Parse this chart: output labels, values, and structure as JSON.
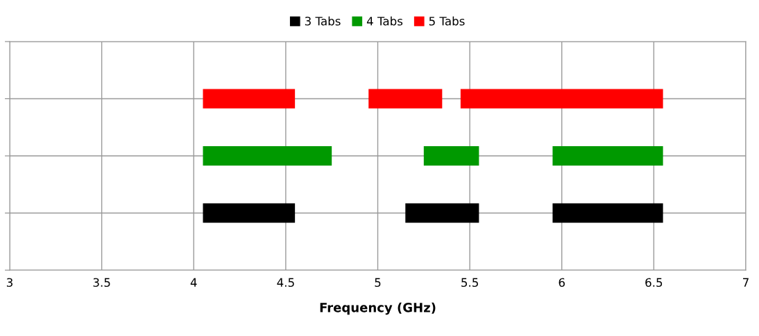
{
  "chart_data": {
    "type": "bar",
    "orientation": "horizontal",
    "xlabel": "Frequency (GHz)",
    "categories": [
      null,
      null,
      null
    ],
    "xlim": [
      3,
      7
    ],
    "xticks": [
      3,
      3.5,
      4,
      4.5,
      5,
      5.5,
      6,
      6.5,
      7
    ],
    "grid": true,
    "legend": "top",
    "tick_labels": "x",
    "series": [
      {
        "name": "3 Tabs",
        "color": "#000000",
        "values": [
          null,
          null,
          0.5
        ],
        "base": [
          null,
          null,
          4.05
        ]
      },
      {
        "name": "4 Tabs",
        "color": "#009900",
        "values": [
          null,
          0.7,
          null
        ],
        "base": [
          null,
          4.05,
          null
        ]
      },
      {
        "name": "5 Tabs",
        "color": "#ff0000",
        "values": [
          0.5,
          null,
          null
        ],
        "base": [
          4.05,
          null,
          null
        ]
      },
      {
        "color": "#000000",
        "values": [
          null,
          null,
          0.4
        ],
        "base": [
          null,
          null,
          5.15
        ]
      },
      {
        "color": "#000000",
        "values": [
          null,
          null,
          0.6
        ],
        "base": [
          null,
          null,
          5.95
        ]
      },
      {
        "color": "#009900",
        "values": [
          null,
          0.3,
          null
        ],
        "base": [
          null,
          5.25,
          null
        ]
      },
      {
        "color": "#009900",
        "values": [
          null,
          0.6,
          null
        ],
        "base": [
          null,
          5.95,
          null
        ]
      },
      {
        "color": "#ff0000",
        "values": [
          0.4,
          null,
          null
        ],
        "base": [
          4.95,
          null,
          null
        ]
      },
      {
        "color": "#ff0000",
        "values": [
          1.1,
          null,
          null
        ],
        "base": [
          5.45,
          null,
          null
        ]
      }
    ]
  }
}
